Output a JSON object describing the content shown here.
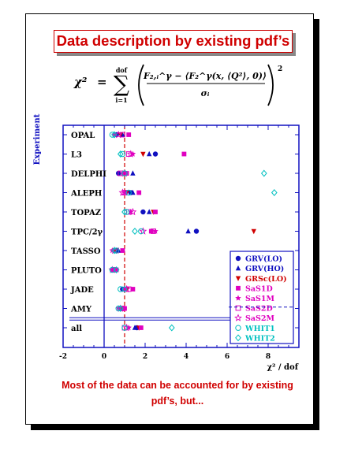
{
  "slide": {
    "title": "Data description by existing pdf’s",
    "formula": {
      "lhs": "χ²",
      "eq": "=",
      "sum_top": "dof",
      "sum_bottom": "i=1",
      "numerator": "F₂,ᵢ^γ − ⟨F₂^γ(x, ⟨Q²⟩, 0)⟩",
      "denominator": "σᵢ",
      "power": "2"
    },
    "caption_line1": "Most of the data can be accounted for by existing",
    "caption_line2": "pdf’s, but..."
  },
  "chart_data": {
    "type": "scatter",
    "ylabel": "Experiment",
    "xlabel": "χ² / dof",
    "xlim": [
      -2,
      9.5
    ],
    "xticks": [
      -2,
      0,
      2,
      4,
      6,
      8
    ],
    "reference_line_x": 1,
    "categories": [
      "OPAL",
      "L3",
      "DELPHI",
      "ALEPH",
      "TOPAZ",
      "TPC/2γ",
      "TASSO",
      "PLUTO",
      "JADE",
      "AMY",
      "all"
    ],
    "series": [
      {
        "name": "GRV(LO)",
        "color": "#1010c0",
        "marker": "circle",
        "values": [
          0.6,
          2.5,
          0.7,
          1.3,
          1.9,
          4.5,
          0.6,
          0.5,
          0.9,
          0.8,
          1.6
        ]
      },
      {
        "name": "GRV(HO)",
        "color": "#1010c0",
        "marker": "triangle-up",
        "values": [
          0.9,
          2.2,
          1.4,
          1.4,
          2.2,
          4.1,
          0.7,
          0.5,
          1.0,
          0.9,
          1.5
        ]
      },
      {
        "name": "GRSc(LO)",
        "color": "#d00000",
        "marker": "triangle-down",
        "values": [
          0.8,
          1.9,
          1.0,
          1.1,
          2.4,
          7.3,
          0.5,
          0.5,
          1.1,
          0.9,
          1.7
        ]
      },
      {
        "name": "SaS1D",
        "color": "#e000c0",
        "marker": "square",
        "values": [
          1.2,
          3.9,
          1.1,
          1.7,
          2.5,
          2.3,
          0.9,
          0.6,
          1.4,
          1.0,
          1.8
        ]
      },
      {
        "name": "SaS1M",
        "color": "#e000c0",
        "marker": "star",
        "values": [
          0.5,
          1.4,
          0.9,
          1.0,
          1.3,
          2.5,
          0.4,
          0.4,
          1.0,
          0.7,
          1.2
        ]
      },
      {
        "name": "SaS2D",
        "color": "#e000c0",
        "marker": "square-open",
        "values": [
          0.9,
          1.2,
          0.8,
          1.0,
          1.2,
          2.4,
          0.6,
          0.5,
          1.2,
          0.9,
          1.0
        ]
      },
      {
        "name": "SaS2M",
        "color": "#e000c0",
        "marker": "star-open",
        "values": [
          0.7,
          1.3,
          1.0,
          0.9,
          1.4,
          1.9,
          0.5,
          0.4,
          1.1,
          0.8,
          1.1
        ]
      },
      {
        "name": "WHIT1",
        "color": "#00c0c0",
        "marker": "circle-open",
        "values": [
          0.4,
          0.9,
          1.0,
          1.2,
          1.1,
          1.8,
          0.6,
          0.4,
          0.8,
          0.7,
          1.0
        ]
      },
      {
        "name": "WHIT2",
        "color": "#00c0c0",
        "marker": "diamond-open",
        "values": [
          0.5,
          0.8,
          7.8,
          8.3,
          1.0,
          1.5,
          0.5,
          0.6,
          1.0,
          0.8,
          3.3
        ]
      }
    ],
    "legend_position": "bottom-right"
  }
}
